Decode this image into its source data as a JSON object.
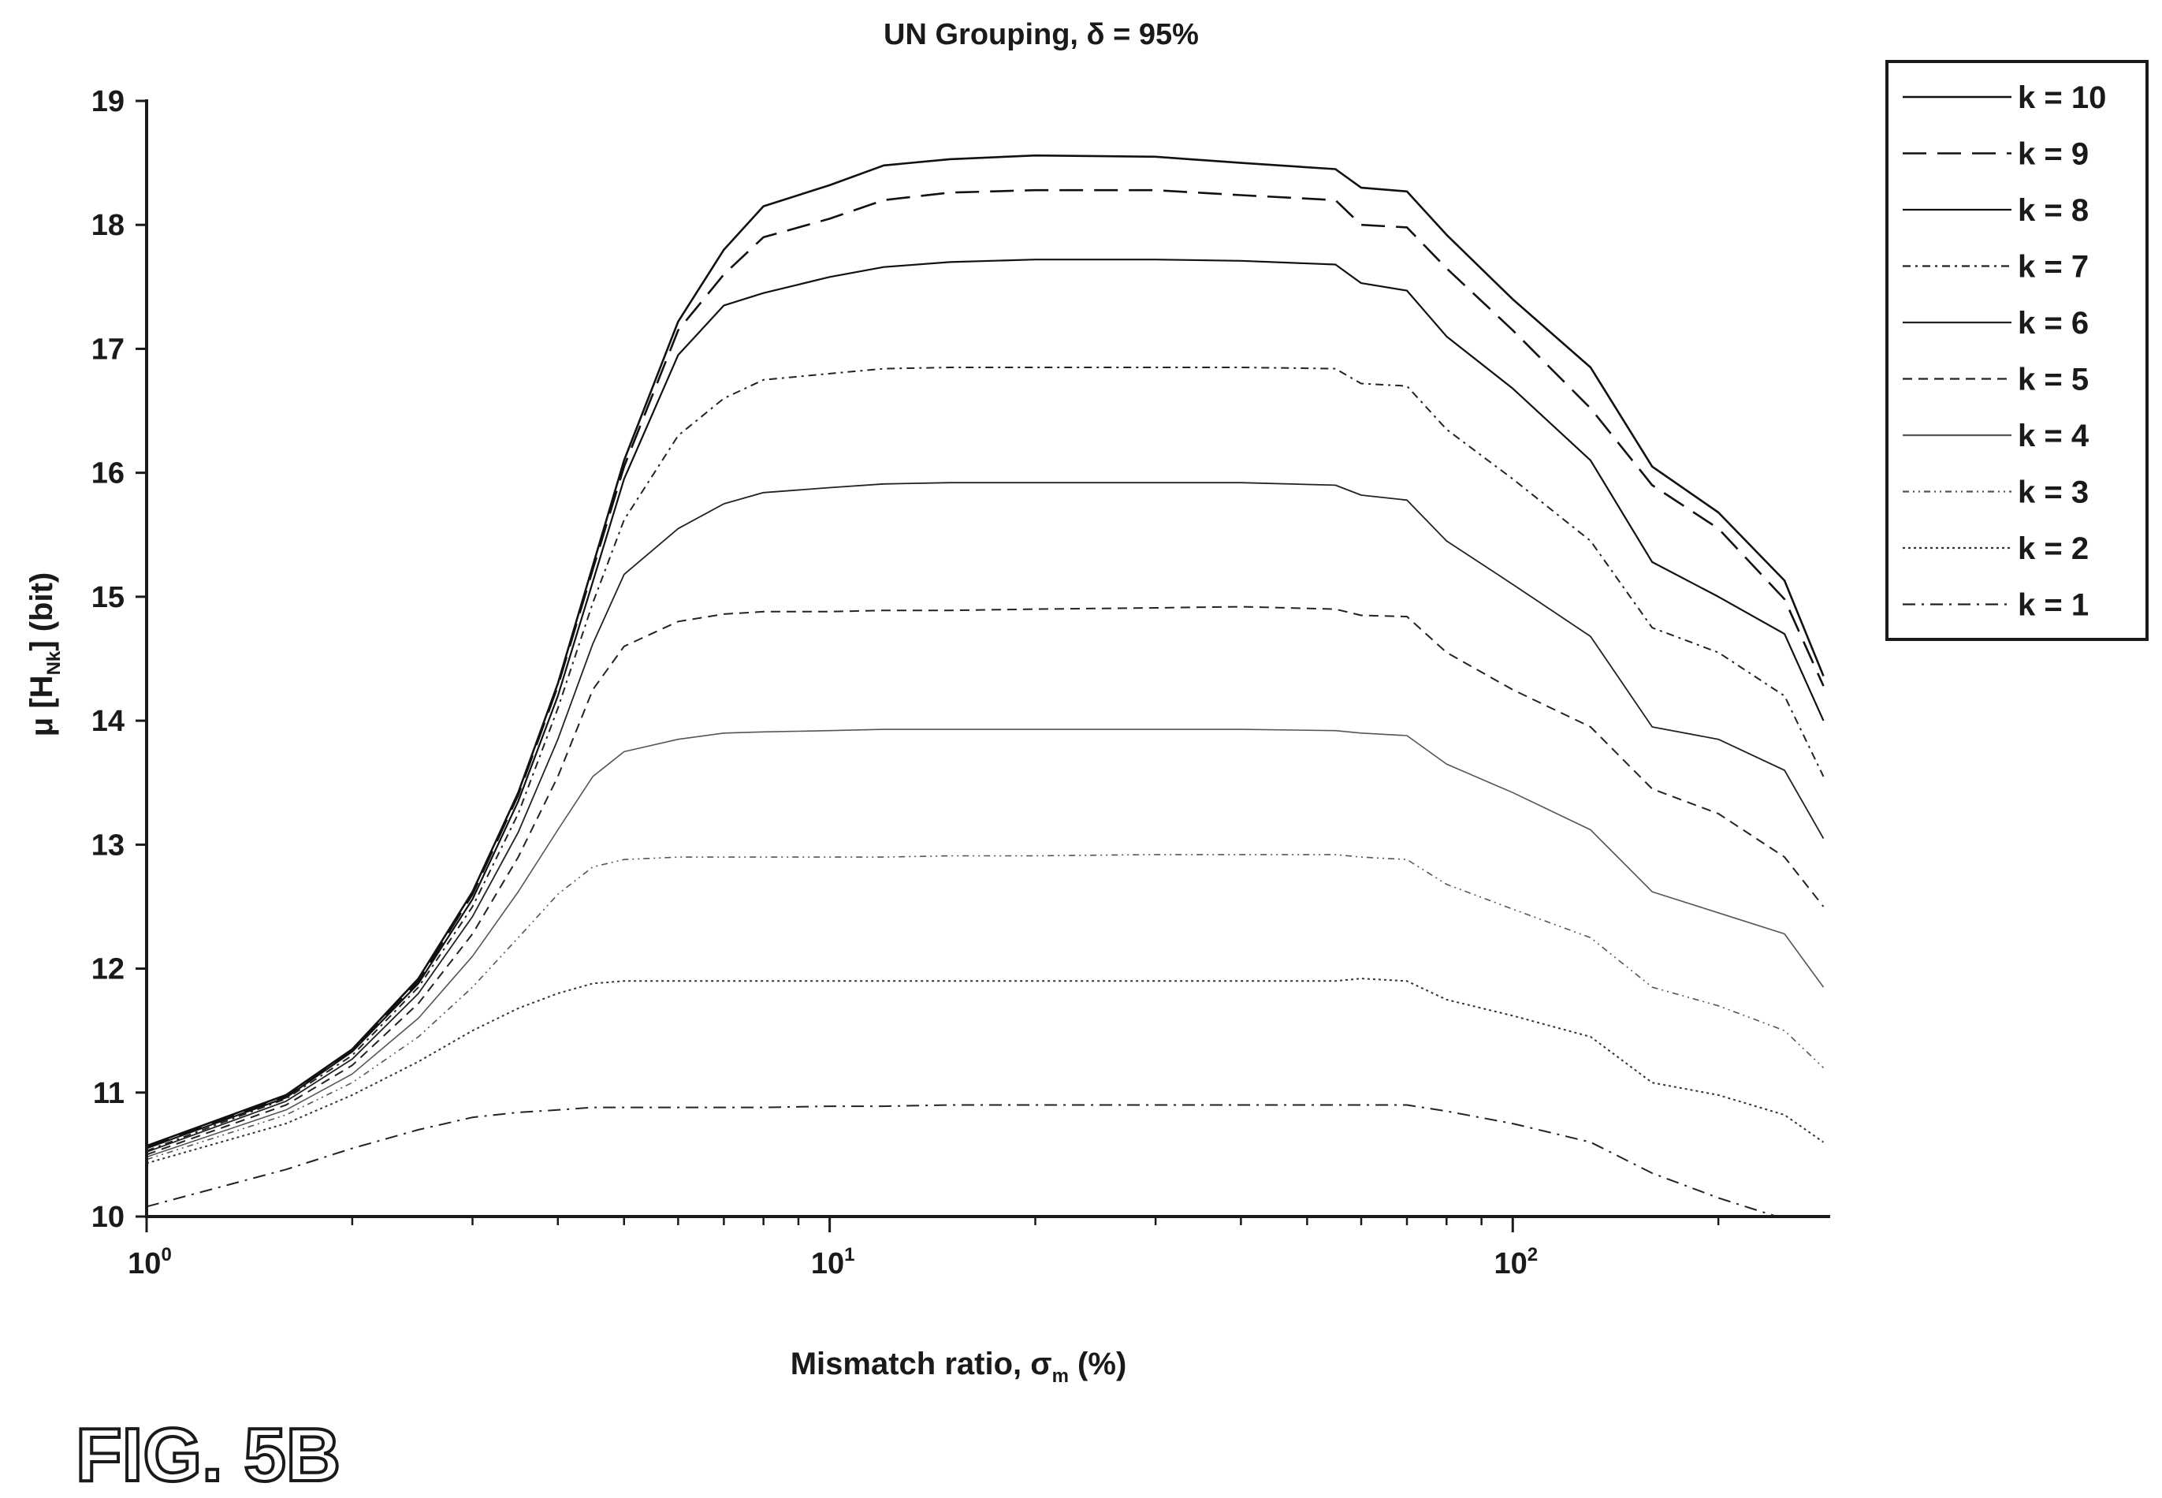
{
  "figure_label": "FIG. 5B",
  "chart_data": {
    "type": "line",
    "title": "UN Grouping, δ = 95%",
    "xlabel": "Mismatch ratio, σm (%)",
    "xlabel_parts": {
      "pre": "Mismatch ratio, σ",
      "sub": "m",
      "post": " (%)"
    },
    "ylabel": "μ [HNk] (bit)",
    "ylabel_parts": {
      "pre": "μ [H",
      "sub": "Nk",
      "post": "] (bit)"
    },
    "x_scale": "log",
    "xlim": [
      1,
      290
    ],
    "ylim": [
      10,
      19
    ],
    "x_ticks": [
      {
        "value": 1,
        "base": "10",
        "exp": "0"
      },
      {
        "value": 10,
        "base": "10",
        "exp": "1"
      },
      {
        "value": 100,
        "base": "10",
        "exp": "2"
      }
    ],
    "y_ticks": [
      "10",
      "11",
      "12",
      "13",
      "14",
      "15",
      "16",
      "17",
      "18",
      "19"
    ],
    "grid": false,
    "legend_position": "outside-right-top",
    "x": [
      1,
      1.6,
      2,
      2.5,
      3,
      3.5,
      4,
      4.5,
      5,
      6,
      7,
      8,
      10,
      12,
      15,
      20,
      30,
      40,
      55,
      60,
      70,
      80,
      100,
      130,
      160,
      200,
      250,
      285
    ],
    "series": [
      {
        "name": "k = 10",
        "dash": "",
        "width": 2.6,
        "color": "#111111",
        "values": [
          10.57,
          10.98,
          11.35,
          11.92,
          12.62,
          13.42,
          14.3,
          15.25,
          16.1,
          17.22,
          17.8,
          18.15,
          18.32,
          18.48,
          18.53,
          18.56,
          18.55,
          18.5,
          18.45,
          18.3,
          18.27,
          17.92,
          17.4,
          16.85,
          16.05,
          15.68,
          15.13,
          14.36
        ]
      },
      {
        "name": "k = 9",
        "dash": "30 14",
        "width": 2.6,
        "color": "#111111",
        "values": [
          10.56,
          10.97,
          11.34,
          11.9,
          12.6,
          13.4,
          14.28,
          15.22,
          16.05,
          17.15,
          17.6,
          17.9,
          18.05,
          18.2,
          18.26,
          18.28,
          18.28,
          18.24,
          18.2,
          18.0,
          17.98,
          17.65,
          17.15,
          16.52,
          15.9,
          15.55,
          14.98,
          14.28
        ]
      },
      {
        "name": "k = 8",
        "dash": "",
        "width": 2.2,
        "color": "#111111",
        "values": [
          10.55,
          10.96,
          11.33,
          11.88,
          12.56,
          13.35,
          14.2,
          15.12,
          15.95,
          16.95,
          17.35,
          17.45,
          17.58,
          17.66,
          17.7,
          17.72,
          17.72,
          17.71,
          17.68,
          17.53,
          17.47,
          17.1,
          16.68,
          16.1,
          15.28,
          15.0,
          14.7,
          14.0
        ]
      },
      {
        "name": "k = 7",
        "dash": "10 6 3 6",
        "width": 2.0,
        "color": "#222222",
        "values": [
          10.53,
          10.95,
          11.3,
          11.85,
          12.5,
          13.25,
          14.1,
          14.95,
          15.62,
          16.3,
          16.6,
          16.75,
          16.8,
          16.84,
          16.85,
          16.85,
          16.85,
          16.85,
          16.84,
          16.72,
          16.7,
          16.35,
          15.95,
          15.45,
          14.75,
          14.55,
          14.2,
          13.55
        ]
      },
      {
        "name": "k = 6",
        "dash": "",
        "width": 1.8,
        "color": "#222222",
        "values": [
          10.52,
          10.93,
          11.27,
          11.8,
          12.42,
          13.1,
          13.85,
          14.62,
          15.18,
          15.55,
          15.75,
          15.84,
          15.88,
          15.91,
          15.92,
          15.92,
          15.92,
          15.92,
          15.9,
          15.82,
          15.78,
          15.45,
          15.1,
          14.68,
          13.95,
          13.85,
          13.6,
          13.05
        ]
      },
      {
        "name": "k = 5",
        "dash": "12 8",
        "width": 2.0,
        "color": "#222222",
        "values": [
          10.5,
          10.9,
          11.22,
          11.72,
          12.28,
          12.9,
          13.55,
          14.25,
          14.6,
          14.8,
          14.86,
          14.88,
          14.88,
          14.89,
          14.89,
          14.9,
          14.91,
          14.92,
          14.9,
          14.85,
          14.84,
          14.55,
          14.25,
          13.95,
          13.45,
          13.25,
          12.9,
          12.5
        ]
      },
      {
        "name": "k = 4",
        "dash": "",
        "width": 1.6,
        "color": "#555555",
        "values": [
          10.48,
          10.86,
          11.15,
          11.6,
          12.1,
          12.62,
          13.12,
          13.55,
          13.75,
          13.85,
          13.9,
          13.91,
          13.92,
          13.93,
          13.93,
          13.93,
          13.93,
          13.93,
          13.92,
          13.9,
          13.88,
          13.65,
          13.42,
          13.12,
          12.62,
          12.45,
          12.28,
          11.85
        ]
      },
      {
        "name": "k = 3",
        "dash": "8 5 2 5 2 5",
        "width": 1.6,
        "color": "#555555",
        "values": [
          10.46,
          10.82,
          11.08,
          11.45,
          11.85,
          12.25,
          12.6,
          12.82,
          12.88,
          12.9,
          12.9,
          12.9,
          12.9,
          12.9,
          12.91,
          12.91,
          12.92,
          12.92,
          12.92,
          12.9,
          12.88,
          12.68,
          12.48,
          12.25,
          11.85,
          11.7,
          11.5,
          11.2
        ]
      },
      {
        "name": "k = 2",
        "dash": "3 4",
        "width": 2.0,
        "color": "#333333",
        "values": [
          10.43,
          10.75,
          10.98,
          11.25,
          11.5,
          11.68,
          11.8,
          11.88,
          11.9,
          11.9,
          11.9,
          11.9,
          11.9,
          11.9,
          11.9,
          11.9,
          11.9,
          11.9,
          11.9,
          11.92,
          11.9,
          11.75,
          11.62,
          11.45,
          11.08,
          10.98,
          10.82,
          10.6
        ]
      },
      {
        "name": "k = 1",
        "dash": "16 8 3 8",
        "width": 2.0,
        "color": "#222222",
        "values": [
          10.08,
          10.38,
          10.55,
          10.7,
          10.8,
          10.84,
          10.86,
          10.88,
          10.88,
          10.88,
          10.88,
          10.88,
          10.89,
          10.89,
          10.9,
          10.9,
          10.9,
          10.9,
          10.9,
          10.9,
          10.9,
          10.85,
          10.75,
          10.6,
          10.35,
          10.15,
          9.98,
          9.8
        ]
      }
    ]
  }
}
